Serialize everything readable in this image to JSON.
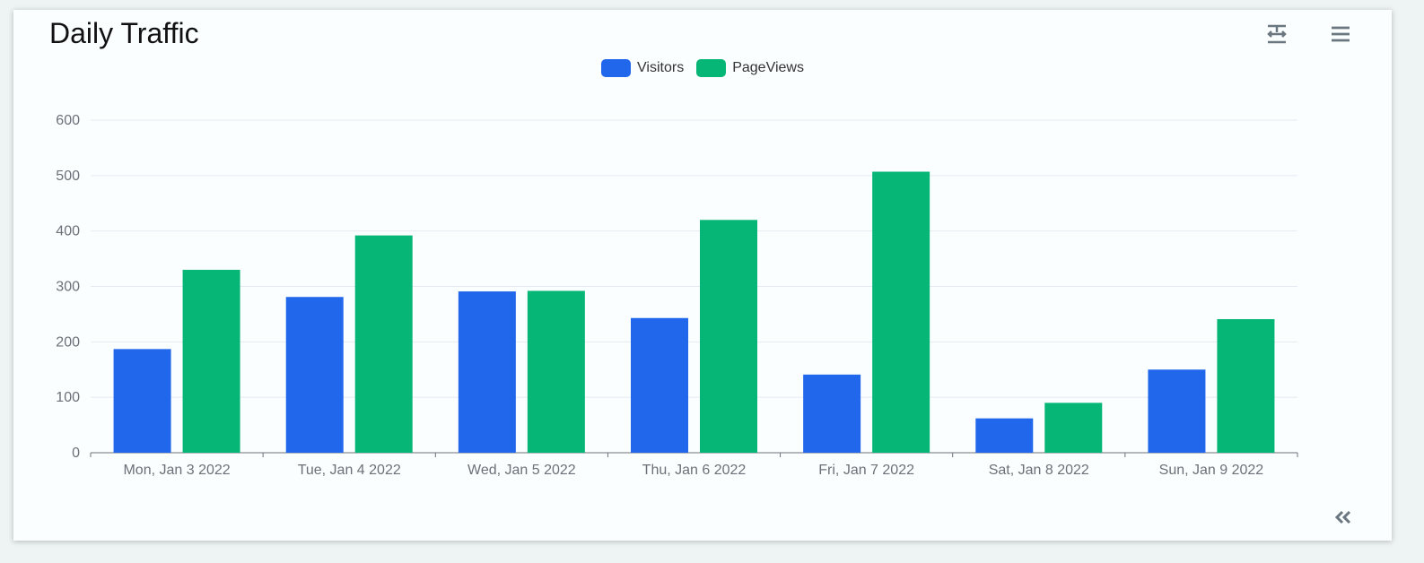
{
  "title": "Daily Traffic",
  "toolbar": {
    "data_view_icon": "data-view-icon",
    "menu_icon": "hamburger-menu-icon",
    "collapse_icon": "double-chevron-left-icon"
  },
  "colors": {
    "visitors": "#2167ec",
    "pageviews": "#05b676",
    "grid": "#e6e9f3",
    "axis": "#6e7079"
  },
  "chart_data": {
    "type": "bar",
    "title": "Daily Traffic",
    "categories": [
      "Mon, Jan 3 2022",
      "Tue, Jan 4 2022",
      "Wed, Jan 5 2022",
      "Thu, Jan 6 2022",
      "Fri, Jan 7 2022",
      "Sat, Jan 8 2022",
      "Sun, Jan 9 2022"
    ],
    "series": [
      {
        "name": "Visitors",
        "values": [
          187,
          281,
          291,
          243,
          141,
          62,
          150
        ]
      },
      {
        "name": "PageViews",
        "values": [
          330,
          392,
          292,
          420,
          507,
          90,
          241
        ]
      }
    ],
    "ylim": [
      0,
      600
    ],
    "yticks": [
      "0",
      "100",
      "200",
      "300",
      "400",
      "500",
      "600"
    ],
    "grid": true,
    "legend": "top-center"
  }
}
